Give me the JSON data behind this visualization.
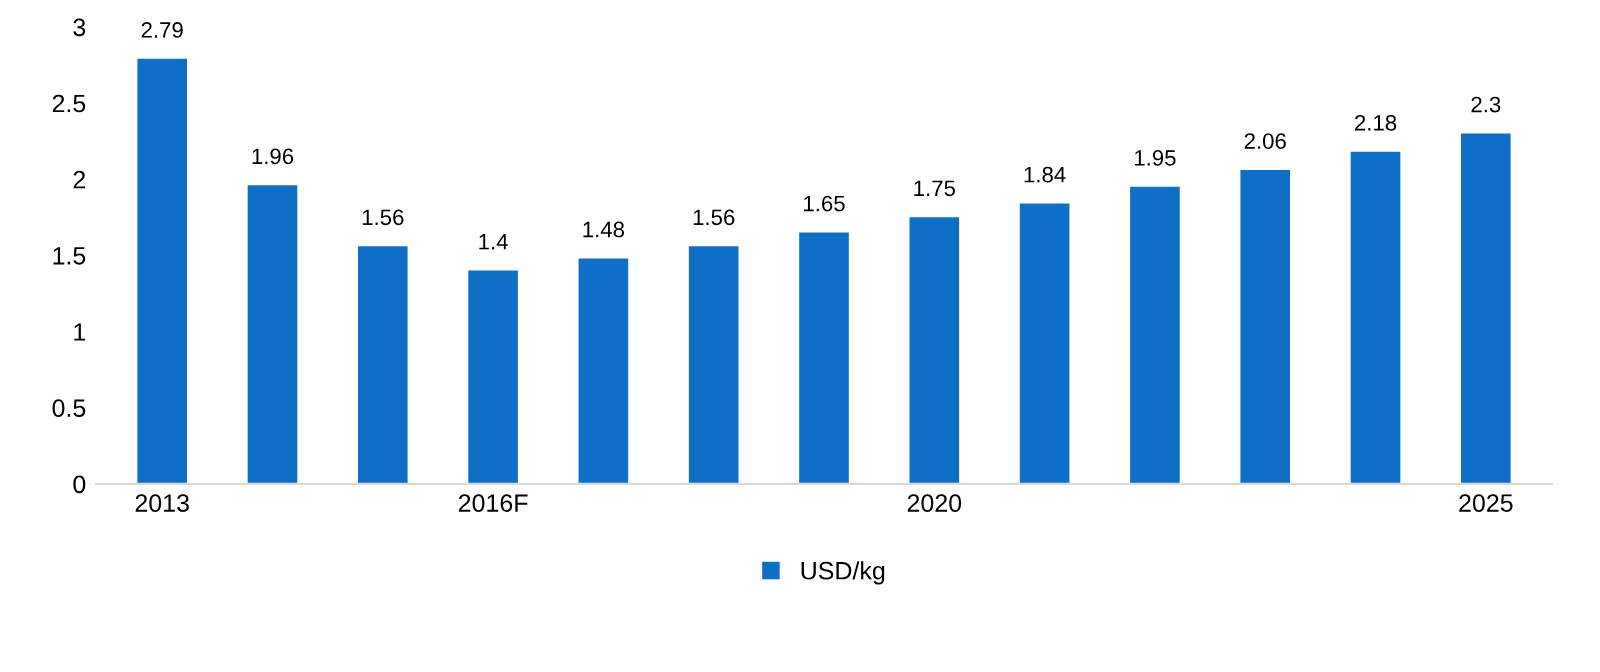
{
  "chart_data": {
    "type": "bar",
    "categories": [
      "2013",
      null,
      null,
      "2016F",
      null,
      null,
      null,
      "2020",
      null,
      null,
      null,
      null,
      "2025"
    ],
    "series": [
      {
        "name": "USD/kg",
        "color": "#0f6fc6",
        "values": [
          2.79,
          1.96,
          1.56,
          1.4,
          1.48,
          1.56,
          1.65,
          1.75,
          1.84,
          1.95,
          2.06,
          2.18,
          2.3
        ]
      }
    ],
    "ylim": [
      0,
      3
    ],
    "yticks": [
      0,
      0.5,
      1,
      1.5,
      2,
      2.5,
      3
    ],
    "grid": false,
    "legend": "bottom",
    "data_labels": true
  }
}
